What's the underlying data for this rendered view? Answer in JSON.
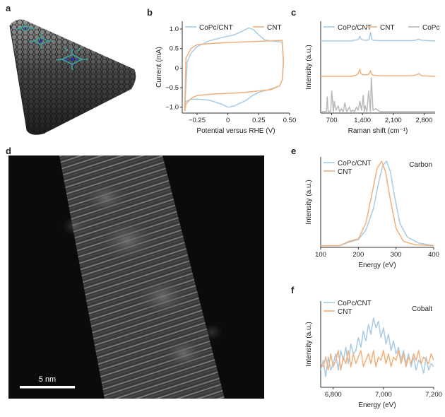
{
  "panel_labels": {
    "a": "a",
    "b": "b",
    "c": "c",
    "d": "d",
    "e": "e",
    "f": "f"
  },
  "colors": {
    "series1": "#a8cbe4",
    "series2": "#f3b07a",
    "series3": "#b9b9b9",
    "axis": "#333333"
  },
  "icons": {
    "panel_a": "carbon-nanotube-render",
    "panel_d": "tem-micrograph"
  },
  "scalebar": {
    "label": "5 nm"
  },
  "chart_data": [
    {
      "id": "b",
      "type": "line",
      "xlabel": "Potential versus RHE (V)",
      "ylabel": "Current (mA)",
      "xlim": [
        -0.37,
        0.5
      ],
      "ylim": [
        -1.15,
        1.2
      ],
      "xticks": [
        -0.25,
        0,
        0.25,
        0.5
      ],
      "xtick_labels": [
        "−0.25",
        "0",
        "0.25",
        "0.50"
      ],
      "yticks": [
        1.0,
        0.5,
        0,
        -0.5,
        -1.0
      ],
      "ytick_labels": [
        "1.0",
        "0.5",
        "0",
        "−0.5",
        "−1.0"
      ],
      "legend": "top",
      "grid": false,
      "series": [
        {
          "name": "CoPc/CNT",
          "x": [
            -0.35,
            -0.33,
            -0.3,
            -0.25,
            -0.15,
            -0.05,
            0.05,
            0.12,
            0.17,
            0.21,
            0.25,
            0.3,
            0.35,
            0.4,
            0.44,
            0.45,
            0.44,
            0.42,
            0.38,
            0.32,
            0.25,
            0.2,
            0.15,
            0.05,
            0,
            -0.05,
            -0.15,
            -0.25,
            -0.3,
            -0.34,
            -0.35,
            -0.35
          ],
          "y": [
            -1.05,
            0.15,
            0.38,
            0.55,
            0.7,
            0.78,
            0.85,
            0.95,
            1.03,
            0.98,
            0.85,
            0.72,
            0.7,
            0.68,
            0.66,
            0.1,
            -0.3,
            -0.45,
            -0.5,
            -0.56,
            -0.62,
            -0.7,
            -0.82,
            -0.97,
            -1.0,
            -0.92,
            -0.82,
            -0.79,
            -0.8,
            -0.85,
            -0.95,
            -1.05
          ]
        },
        {
          "name": "CNT",
          "x": [
            -0.35,
            -0.34,
            -0.3,
            -0.25,
            -0.1,
            0.05,
            0.2,
            0.35,
            0.44,
            0.45,
            0.44,
            0.42,
            0.35,
            0.2,
            0.05,
            -0.1,
            -0.25,
            -0.3,
            -0.34,
            -0.35,
            -0.35
          ],
          "y": [
            -1.1,
            0.25,
            0.5,
            0.6,
            0.64,
            0.66,
            0.68,
            0.7,
            0.71,
            0.2,
            -0.3,
            -0.45,
            -0.55,
            -0.6,
            -0.64,
            -0.66,
            -0.7,
            -0.78,
            -0.92,
            -1.1,
            -1.1
          ]
        }
      ]
    },
    {
      "id": "c",
      "type": "line",
      "xlabel": "Raman shift (cm⁻¹)",
      "ylabel": "Intensity (a.u.)",
      "xlim": [
        450,
        3050
      ],
      "xticks": [
        700,
        1400,
        2100,
        2800
      ],
      "xtick_labels": [
        "700",
        "1,400",
        "2,100",
        "2,800"
      ],
      "legend": "top",
      "grid": false,
      "series": [
        {
          "name": "CoPc/CNT",
          "x": [
            450,
            1150,
            1200,
            1300,
            1340,
            1360,
            1400,
            1430,
            1500,
            1550,
            1580,
            1610,
            1650,
            1800,
            2500,
            2600,
            2680,
            2750,
            3050
          ],
          "y": [
            0.7,
            0.7,
            0.72,
            0.74,
            0.83,
            0.76,
            0.73,
            0.72,
            0.72,
            0.74,
            0.94,
            0.75,
            0.72,
            0.71,
            0.71,
            0.72,
            0.75,
            0.72,
            0.7
          ]
        },
        {
          "name": "CNT",
          "x": [
            450,
            1150,
            1250,
            1300,
            1340,
            1360,
            1400,
            1500,
            1550,
            1580,
            1610,
            1650,
            1800,
            2500,
            2600,
            2680,
            2750,
            3050
          ],
          "y": [
            0.42,
            0.42,
            0.44,
            0.47,
            0.55,
            0.48,
            0.45,
            0.45,
            0.46,
            0.52,
            0.46,
            0.44,
            0.43,
            0.43,
            0.44,
            0.47,
            0.43,
            0.42
          ]
        },
        {
          "name": "CoPc",
          "x": [
            450,
            580,
            600,
            620,
            680,
            700,
            740,
            760,
            800,
            850,
            880,
            920,
            960,
            1000,
            1040,
            1100,
            1140,
            1180,
            1220,
            1260,
            1300,
            1340,
            1380,
            1420,
            1440,
            1460,
            1500,
            1540,
            1580,
            1600,
            1640,
            1700,
            1800,
            2000,
            2400,
            3050
          ],
          "y": [
            0.06,
            0.06,
            0.16,
            0.06,
            0.06,
            0.2,
            0.06,
            0.13,
            0.07,
            0.1,
            0.06,
            0.08,
            0.06,
            0.12,
            0.06,
            0.09,
            0.06,
            0.07,
            0.06,
            0.09,
            0.07,
            0.13,
            0.07,
            0.17,
            0.06,
            0.1,
            0.06,
            0.2,
            0.06,
            0.29,
            0.07,
            0.08,
            0.06,
            0.06,
            0.06,
            0.06
          ]
        }
      ]
    },
    {
      "id": "e",
      "type": "line",
      "xlabel": "Energy (eV)",
      "ylabel": "Intensity (a.u.)",
      "annotation": "Carbon",
      "xlim": [
        100,
        400
      ],
      "ylim": [
        0,
        1.05
      ],
      "xticks": [
        100,
        200,
        300,
        400
      ],
      "xtick_labels": [
        "100",
        "200",
        "300",
        "400"
      ],
      "legend": "top-left",
      "grid": false,
      "series": [
        {
          "name": "CoPc/CNT",
          "x": [
            100,
            150,
            175,
            200,
            220,
            240,
            255,
            265,
            275,
            285,
            295,
            310,
            330,
            360,
            400
          ],
          "y": [
            0.02,
            0.02,
            0.06,
            0.09,
            0.2,
            0.45,
            0.78,
            0.95,
            1.0,
            0.88,
            0.62,
            0.28,
            0.12,
            0.05,
            0.02
          ]
        },
        {
          "name": "CNT",
          "x": [
            100,
            150,
            175,
            200,
            220,
            235,
            250,
            262,
            272,
            285,
            300,
            320,
            350,
            400
          ],
          "y": [
            0.02,
            0.02,
            0.07,
            0.1,
            0.28,
            0.6,
            0.92,
            1.0,
            0.88,
            0.55,
            0.22,
            0.07,
            0.03,
            0.02
          ]
        }
      ]
    },
    {
      "id": "f",
      "type": "line",
      "xlabel": "Energy (eV)",
      "ylabel": "Intensity (a.u.)",
      "annotation": "Cobalt",
      "xlim": [
        6750,
        7200
      ],
      "xticks": [
        6800,
        7000,
        7200
      ],
      "xtick_labels": [
        "6,800",
        "7,000",
        "7,200"
      ],
      "legend": "top-left",
      "grid": false,
      "series": [
        {
          "name": "CoPc/CNT",
          "x": [
            6750,
            6760,
            6770,
            6780,
            6790,
            6800,
            6810,
            6820,
            6830,
            6840,
            6850,
            6860,
            6870,
            6880,
            6890,
            6900,
            6910,
            6920,
            6930,
            6940,
            6950,
            6960,
            6970,
            6980,
            6990,
            7000,
            7010,
            7020,
            7030,
            7040,
            7050,
            7060,
            7070,
            7080,
            7090,
            7100,
            7110,
            7120,
            7130,
            7140,
            7150,
            7160,
            7170,
            7180,
            7190,
            7200
          ],
          "y": [
            0.2,
            0.35,
            0.1,
            0.4,
            0.2,
            0.3,
            0.45,
            0.2,
            0.5,
            0.35,
            0.55,
            0.3,
            0.6,
            0.45,
            0.5,
            0.7,
            0.55,
            0.8,
            0.65,
            0.9,
            0.75,
            1.0,
            0.85,
            0.95,
            0.7,
            0.85,
            0.6,
            0.75,
            0.5,
            0.65,
            0.45,
            0.55,
            0.35,
            0.5,
            0.3,
            0.45,
            0.25,
            0.4,
            0.2,
            0.35,
            0.3,
            0.15,
            0.4,
            0.2,
            0.3,
            0.25
          ]
        },
        {
          "name": "CNT",
          "x": [
            6750,
            6760,
            6770,
            6780,
            6790,
            6800,
            6810,
            6820,
            6830,
            6840,
            6850,
            6860,
            6870,
            6880,
            6890,
            6900,
            6910,
            6920,
            6930,
            6940,
            6950,
            6960,
            6970,
            6980,
            6990,
            7000,
            7010,
            7020,
            7030,
            7040,
            7050,
            7060,
            7070,
            7080,
            7090,
            7100,
            7110,
            7120,
            7130,
            7140,
            7150,
            7160,
            7170,
            7180,
            7190,
            7200
          ],
          "y": [
            0.3,
            0.25,
            0.4,
            0.2,
            0.45,
            0.25,
            0.35,
            0.5,
            0.2,
            0.4,
            0.3,
            0.5,
            0.25,
            0.45,
            0.3,
            0.4,
            0.5,
            0.25,
            0.35,
            0.45,
            0.3,
            0.5,
            0.25,
            0.4,
            0.35,
            0.5,
            0.3,
            0.45,
            0.25,
            0.4,
            0.35,
            0.5,
            0.3,
            0.45,
            0.25,
            0.4,
            0.3,
            0.45,
            0.35,
            0.5,
            0.3,
            0.4,
            0.35,
            0.3,
            0.45,
            0.35
          ]
        }
      ]
    }
  ]
}
